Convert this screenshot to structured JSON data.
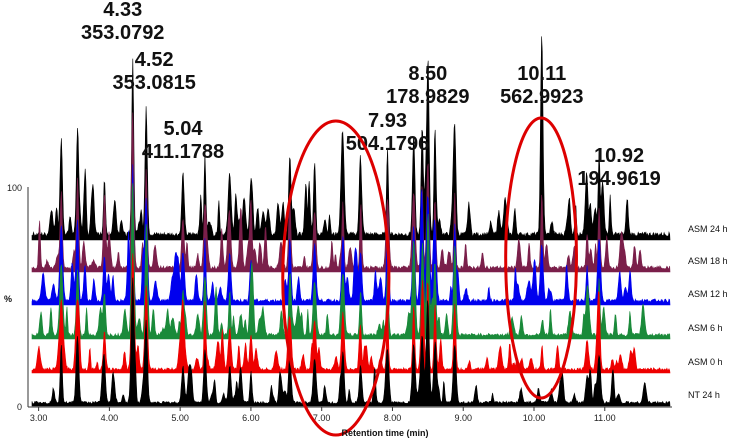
{
  "chart_data": {
    "type": "line",
    "xlabel": "Retention time (min)",
    "ylabel": "%",
    "xlim": [
      2.85,
      11.95
    ],
    "ylim": [
      0,
      100
    ],
    "x_ticks": [
      "3.00",
      "4.00",
      "5.00",
      "6.00",
      "7.00",
      "8.00",
      "9.00",
      "10.00",
      "11.00"
    ],
    "y_ticks": [
      "0",
      "100"
    ],
    "grid": false,
    "stacked_offset_traces": true,
    "series": [
      {
        "name": "ASM 24 h",
        "color": "#000000"
      },
      {
        "name": "ASM 18 h",
        "color": "#7a1f4a"
      },
      {
        "name": "ASM 12 h",
        "color": "#0000ee"
      },
      {
        "name": "ASM 6 h",
        "color": "#1a8a3a"
      },
      {
        "name": "ASM 0 h",
        "color": "#ee0000"
      },
      {
        "name": "NT 24 h",
        "color": "#000000"
      }
    ],
    "annotations": [
      {
        "rt": "4.33",
        "mz": "353.0792",
        "x": 4.33
      },
      {
        "rt": "4.52",
        "mz": "353.0815",
        "x": 4.52
      },
      {
        "rt": "5.04",
        "mz": "411.1788",
        "x": 5.04
      },
      {
        "rt": "7.93",
        "mz": "504.1796",
        "x": 7.93
      },
      {
        "rt": "8.50",
        "mz": "178.9829",
        "x": 8.5
      },
      {
        "rt": "10.11",
        "mz": "562.9923",
        "x": 10.11
      },
      {
        "rt": "10.92",
        "mz": "194.9619",
        "x": 10.92
      }
    ],
    "peaks_x": [
      3.32,
      3.55,
      3.93,
      4.33,
      4.52,
      5.04,
      5.35,
      5.7,
      6.0,
      6.55,
      6.9,
      7.3,
      7.55,
      7.93,
      8.3,
      8.42,
      8.5,
      8.6,
      8.88,
      10.11,
      10.75,
      10.92
    ],
    "highlight_regions": [
      {
        "x_range": [
          6.45,
          7.95
        ],
        "color": "#dd0000"
      },
      {
        "x_range": [
          9.6,
          10.6
        ],
        "color": "#dd0000"
      }
    ]
  }
}
